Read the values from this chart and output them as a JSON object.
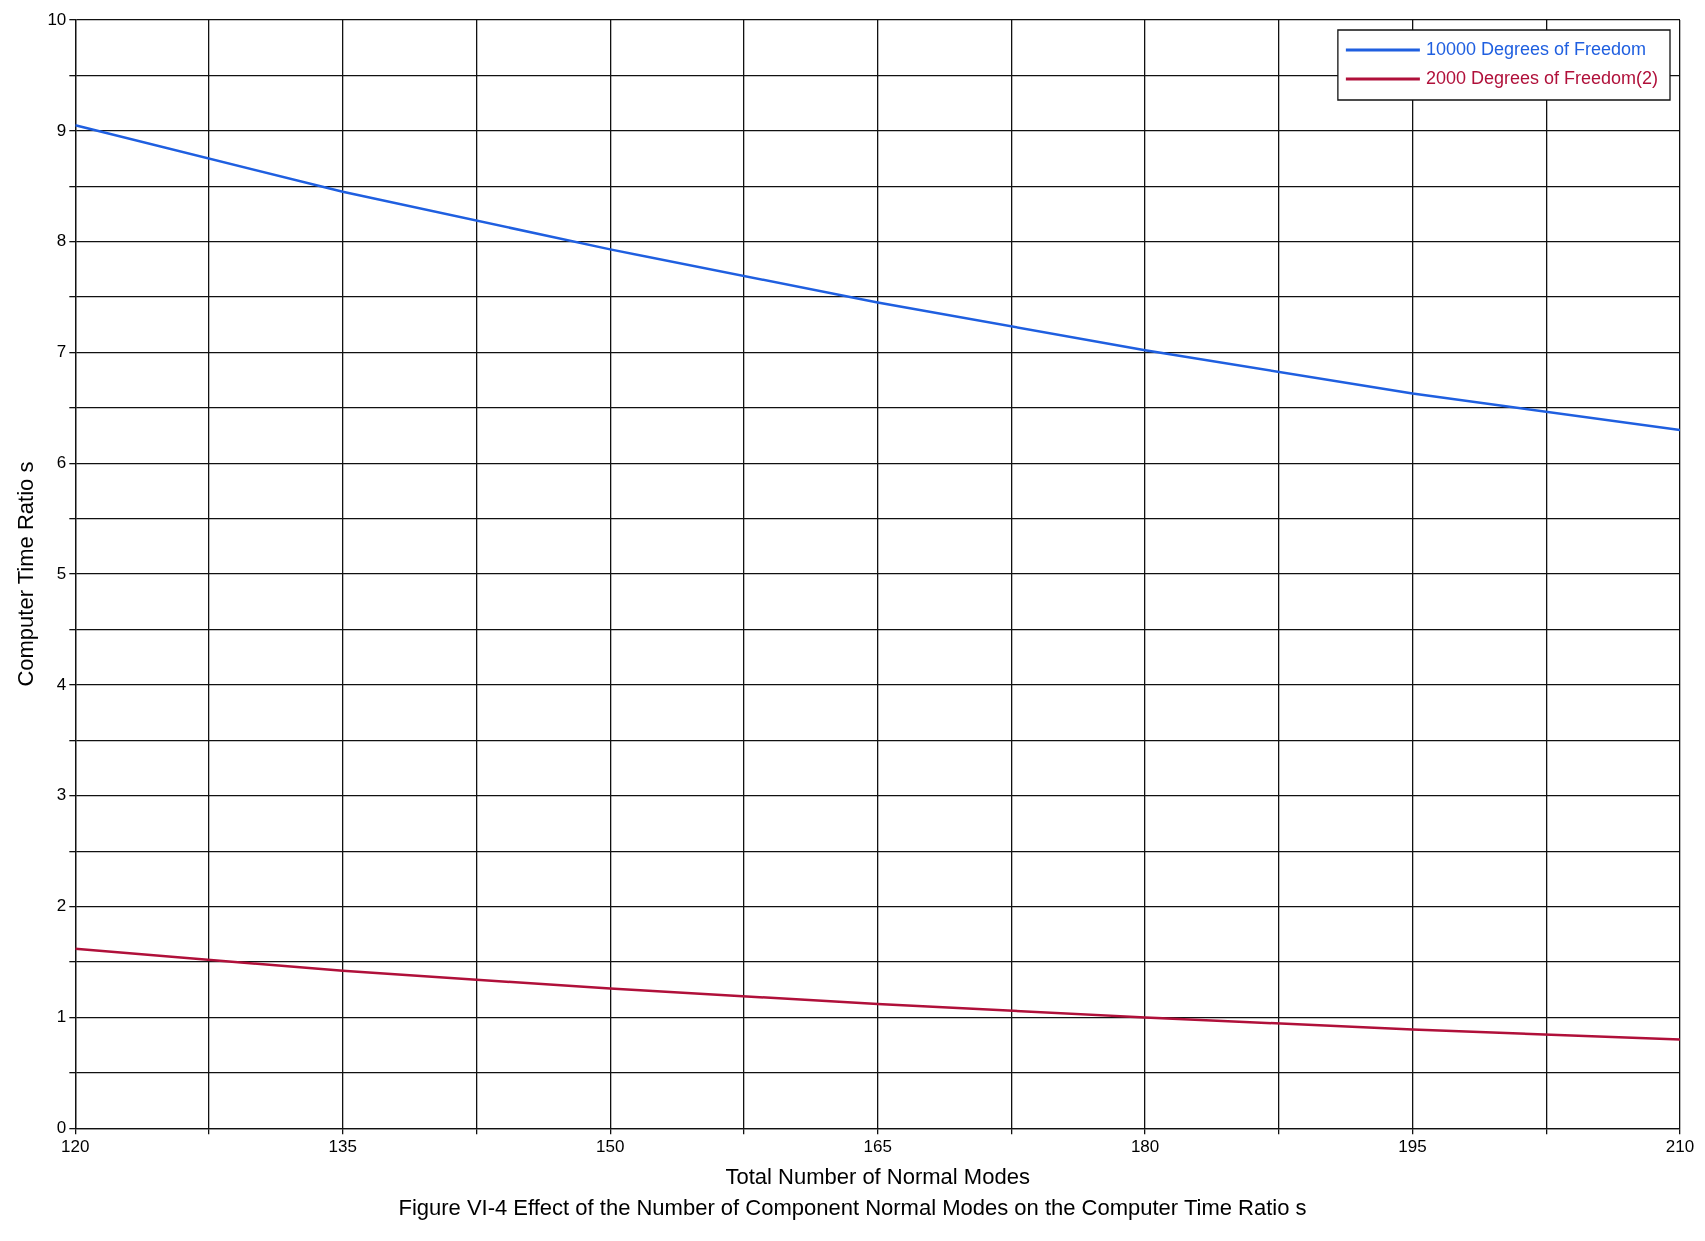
{
  "chart_data": {
    "type": "line",
    "xlabel": "Total Number of Normal Modes",
    "ylabel": "Computer Time Ratio s",
    "annotations": [
      "Figure VI-4  Effect of the Number of Component Normal Modes on the Computer Time Ratio s"
    ],
    "x": [
      120,
      135,
      150,
      165,
      180,
      195,
      210
    ],
    "series": [
      {
        "name": "10000 Degrees of Freedom",
        "color": "#1f5fe0",
        "values": [
          9.05,
          8.45,
          7.93,
          7.45,
          7.02,
          6.63,
          6.3
        ]
      },
      {
        "name": "2000 Degrees of Freedom(2)",
        "color": "#b0103a",
        "values": [
          1.62,
          1.42,
          1.26,
          1.12,
          1.0,
          0.89,
          0.8
        ]
      }
    ],
    "xlim": [
      120,
      210
    ],
    "xticks": [
      120,
      {
        "value": 127.5,
        "label": null
      },
      135,
      {
        "value": 142.5,
        "label": null
      },
      150,
      {
        "value": 157.5,
        "label": null
      },
      165,
      {
        "value": 172.5,
        "label": null
      },
      180,
      {
        "value": 187.5,
        "label": null
      },
      195,
      {
        "value": 202.5,
        "label": null
      },
      210
    ],
    "ylim": [
      0,
      10
    ],
    "yticks": [
      0,
      {
        "value": 0.5,
        "label": null
      },
      1,
      {
        "value": 1.5,
        "label": null
      },
      2,
      {
        "value": 2.5,
        "label": null
      },
      3,
      {
        "value": 3.5,
        "label": null
      },
      4,
      {
        "value": 4.5,
        "label": null
      },
      5,
      {
        "value": 5.5,
        "label": null
      },
      6,
      {
        "value": 6.5,
        "label": null
      },
      7,
      {
        "value": 7.5,
        "label": null
      },
      8,
      {
        "value": 8.5,
        "label": null
      },
      9,
      {
        "value": 9.5,
        "label": null
      },
      10
    ],
    "grid": true,
    "legend": "top right",
    "marker": "none",
    "line_style": "solid"
  }
}
